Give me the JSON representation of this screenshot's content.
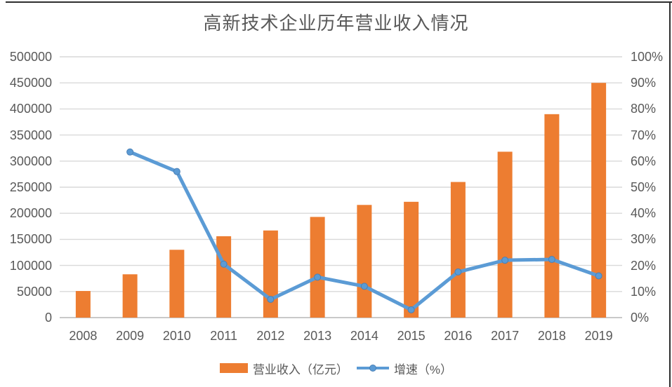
{
  "chart_data": {
    "type": "bar+line",
    "title": "高新技术企业历年营业收入情况",
    "categories": [
      "2008",
      "2009",
      "2010",
      "2011",
      "2012",
      "2013",
      "2014",
      "2015",
      "2016",
      "2017",
      "2018",
      "2019"
    ],
    "series": [
      {
        "name": "营业收入（亿元）",
        "type": "bar",
        "axis": "left",
        "color": "#ED7D31",
        "values": [
          51000,
          83000,
          130000,
          156000,
          167000,
          193000,
          216000,
          222000,
          260000,
          318000,
          390000,
          450000
        ]
      },
      {
        "name": "增速（%）",
        "type": "line",
        "axis": "right",
        "color": "#5B9BD5",
        "marker_color": "#5B9BD5",
        "values": [
          null,
          63.5,
          56,
          20.5,
          7,
          15.5,
          12,
          3,
          17.5,
          22,
          22.3,
          16
        ]
      }
    ],
    "left_axis": {
      "min": 0,
      "max": 500000,
      "step": 50000
    },
    "right_axis": {
      "min": 0,
      "max": 100,
      "step": 10,
      "suffix": "%"
    },
    "grid": true,
    "legend_position": "bottom"
  },
  "colors": {
    "background": "#ffffff",
    "grid_line": "#D9D9D9",
    "zero_line": "#C9C9C9",
    "axis_text": "#595959",
    "title_text": "#595959",
    "frame_border": "#2e2e2e",
    "marker_stroke": "#4a80b6"
  }
}
